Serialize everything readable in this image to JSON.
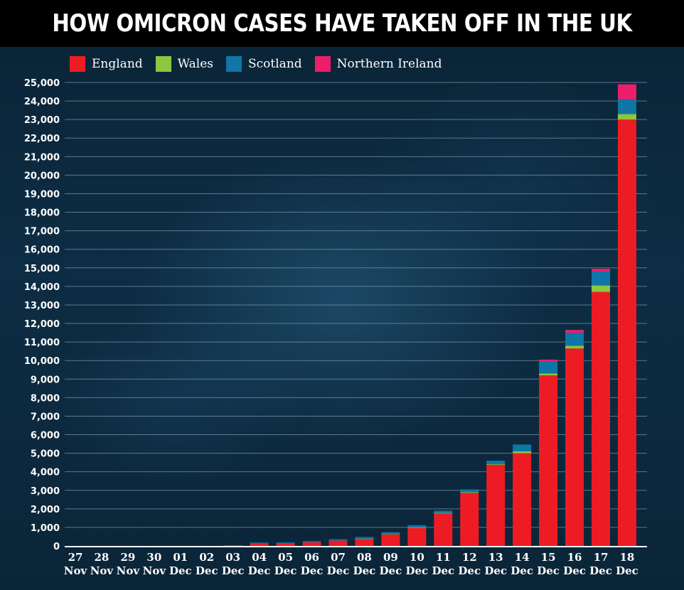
{
  "chart_data": {
    "type": "bar",
    "stacked": true,
    "title": "HOW OMICRON CASES HAVE TAKEN OFF IN THE UK",
    "xlabel": "",
    "ylabel": "",
    "ylim": [
      0,
      25000
    ],
    "y_ticks": [
      0,
      1000,
      2000,
      3000,
      4000,
      5000,
      6000,
      7000,
      8000,
      9000,
      10000,
      11000,
      12000,
      13000,
      14000,
      15000,
      16000,
      17000,
      18000,
      19000,
      20000,
      21000,
      22000,
      23000,
      24000,
      25000
    ],
    "y_tick_labels": [
      "0",
      "1,000",
      "2,000",
      "3,000",
      "4,000",
      "5,000",
      "6,000",
      "7,000",
      "8,000",
      "9,000",
      "10,000",
      "11,000",
      "12,000",
      "13,000",
      "14,000",
      "15,000",
      "16,000",
      "17,000",
      "18,000",
      "19,000",
      "20,000",
      "21,000",
      "22,000",
      "23,000",
      "24,000",
      "25,000"
    ],
    "grid": true,
    "legend_position": "top-left",
    "categories": [
      {
        "day": "27",
        "month": "Nov"
      },
      {
        "day": "28",
        "month": "Nov"
      },
      {
        "day": "29",
        "month": "Nov"
      },
      {
        "day": "30",
        "month": "Nov"
      },
      {
        "day": "01",
        "month": "Dec"
      },
      {
        "day": "02",
        "month": "Dec"
      },
      {
        "day": "03",
        "month": "Dec"
      },
      {
        "day": "04",
        "month": "Dec"
      },
      {
        "day": "05",
        "month": "Dec"
      },
      {
        "day": "06",
        "month": "Dec"
      },
      {
        "day": "07",
        "month": "Dec"
      },
      {
        "day": "08",
        "month": "Dec"
      },
      {
        "day": "09",
        "month": "Dec"
      },
      {
        "day": "10",
        "month": "Dec"
      },
      {
        "day": "11",
        "month": "Dec"
      },
      {
        "day": "12",
        "month": "Dec"
      },
      {
        "day": "13",
        "month": "Dec"
      },
      {
        "day": "14",
        "month": "Dec"
      },
      {
        "day": "15",
        "month": "Dec"
      },
      {
        "day": "16",
        "month": "Dec"
      },
      {
        "day": "17",
        "month": "Dec"
      },
      {
        "day": "18",
        "month": "Dec"
      }
    ],
    "series": [
      {
        "name": "England",
        "color": "#ed1c24",
        "values": [
          0,
          0,
          0,
          0,
          0,
          0,
          20,
          140,
          150,
          200,
          290,
          380,
          620,
          970,
          1750,
          2860,
          4380,
          5000,
          9200,
          10650,
          13700,
          23000
        ]
      },
      {
        "name": "Wales",
        "color": "#8dc63f",
        "values": [
          0,
          0,
          0,
          0,
          0,
          0,
          0,
          0,
          0,
          0,
          0,
          10,
          20,
          30,
          30,
          40,
          40,
          100,
          100,
          150,
          350,
          300
        ]
      },
      {
        "name": "Scotland",
        "color": "#0f76a6",
        "values": [
          0,
          0,
          0,
          0,
          0,
          0,
          10,
          40,
          40,
          60,
          70,
          90,
          100,
          120,
          120,
          150,
          180,
          370,
          650,
          700,
          750,
          800
        ]
      },
      {
        "name": "Northern Ireland",
        "color": "#ec1e6b",
        "values": [
          0,
          0,
          0,
          0,
          0,
          0,
          0,
          0,
          0,
          0,
          0,
          0,
          0,
          0,
          0,
          0,
          0,
          0,
          100,
          150,
          150,
          800
        ]
      }
    ]
  },
  "colors": {
    "title_background": "#000000",
    "text": "#ffffff",
    "gridline": "#7f9aae",
    "axis": "#ffffff"
  }
}
